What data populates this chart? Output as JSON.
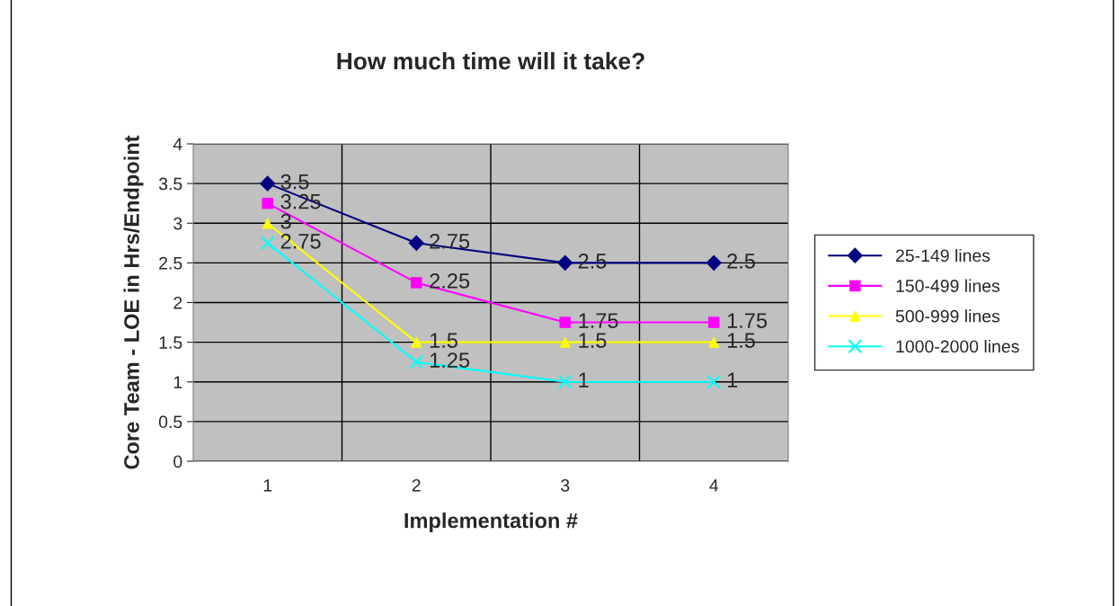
{
  "chart_data": {
    "type": "line",
    "title": "How much time will it take?",
    "xlabel": "Implementation #",
    "ylabel": "Core Team - LOE in Hrs/Endpoint",
    "categories": [
      "1",
      "2",
      "3",
      "4"
    ],
    "series": [
      {
        "name": "25-149 lines",
        "color": "#000080",
        "marker": "diamond",
        "values": [
          3.5,
          2.75,
          2.5,
          2.5
        ]
      },
      {
        "name": "150-499 lines",
        "color": "#ff00ff",
        "marker": "square",
        "values": [
          3.25,
          2.25,
          1.75,
          1.75
        ]
      },
      {
        "name": "500-999 lines",
        "color": "#ffff00",
        "marker": "triangle",
        "values": [
          3,
          1.5,
          1.5,
          1.5
        ]
      },
      {
        "name": "1000-2000 lines",
        "color": "#00ffff",
        "marker": "cross",
        "values": [
          2.75,
          1.25,
          1,
          1
        ]
      }
    ],
    "ylim": [
      0,
      4
    ],
    "yticks": [
      0,
      0.5,
      1,
      1.5,
      2,
      2.5,
      3,
      3.5,
      4
    ],
    "grid": true,
    "legend": "right",
    "data_labels": true
  }
}
